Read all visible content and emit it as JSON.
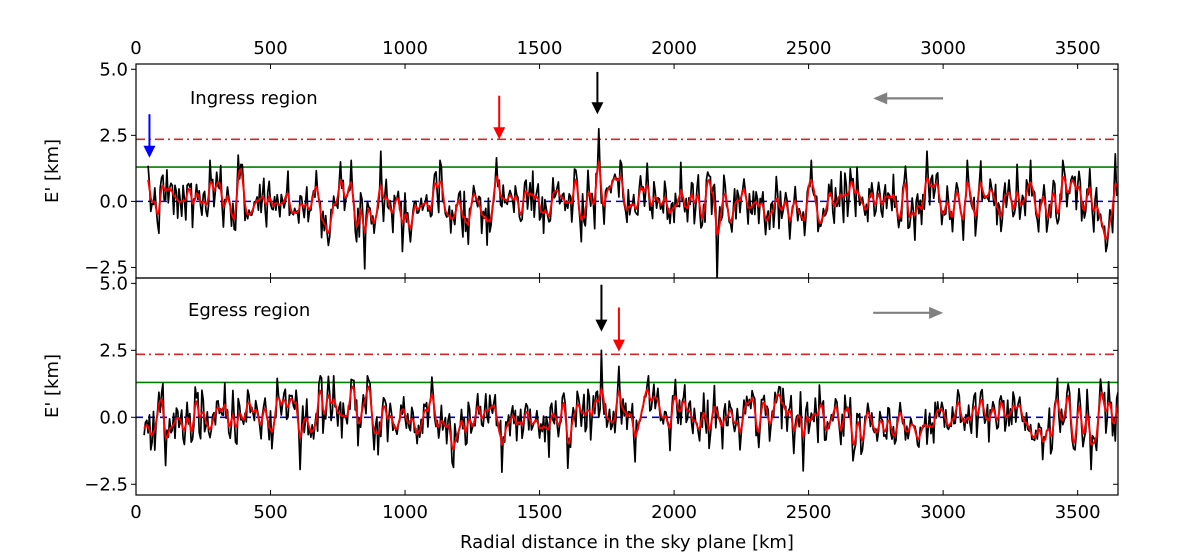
{
  "chart_data": [
    {
      "type": "line",
      "panel": "top",
      "annotation": "Ingress region",
      "ylabel": "E' [km]",
      "xlabel": "",
      "xlim": [
        0,
        3650
      ],
      "ylim": [
        -2.9,
        5.2
      ],
      "xticks": [
        0,
        500,
        1000,
        1500,
        2000,
        2500,
        3000,
        3500
      ],
      "xtick_labels": [
        "0",
        "500",
        "1000",
        "1500",
        "2000",
        "2500",
        "3000",
        "3500"
      ],
      "yticks": [
        -2.5,
        0.0,
        2.5,
        5.0
      ],
      "ytick_labels": [
        "−2.5",
        "0.0",
        "2.5",
        "5.0"
      ],
      "x_start": 45,
      "x_end": 3650,
      "seed": 7,
      "features": [
        {
          "x": 45,
          "y": 1.35
        },
        {
          "x": 380,
          "y": 1.75
        },
        {
          "x": 850,
          "y": -2.55
        },
        {
          "x": 910,
          "y": 1.9
        },
        {
          "x": 1340,
          "y": 1.65
        },
        {
          "x": 1720,
          "y": 2.75
        },
        {
          "x": 2160,
          "y": -3.0
        },
        {
          "x": 2940,
          "y": 1.9
        },
        {
          "x": 3640,
          "y": 1.8
        }
      ],
      "series": [
        {
          "name": "E' (raw)",
          "color": "#000000"
        },
        {
          "name": "E' (smoothed)",
          "color": "#ff0000"
        }
      ],
      "hlines": [
        {
          "name": "3-sigma",
          "y": 2.35,
          "color": "#d62728",
          "style": "dashdot"
        },
        {
          "name": "1-sigma",
          "y": 1.3,
          "color": "#008000",
          "style": "solid"
        },
        {
          "name": "zero",
          "y": 0.0,
          "color": "#0000cc",
          "style": "dashed"
        }
      ],
      "markers": [
        {
          "name": "blue-arrow",
          "x": 50,
          "y_tip": 1.65,
          "y_tail": 3.3,
          "color": "#0000ff"
        },
        {
          "name": "red-arrow",
          "x": 1350,
          "y_tip": 2.35,
          "y_tail": 4.0,
          "color": "#ff0000"
        },
        {
          "name": "black-arrow",
          "x": 1715,
          "y_tip": 3.3,
          "y_tail": 4.9,
          "color": "#000000"
        }
      ],
      "direction_arrow": {
        "from": 3000,
        "to": 2740,
        "y": 3.9,
        "color": "#808080"
      }
    },
    {
      "type": "line",
      "panel": "bottom",
      "annotation": "Egress region",
      "ylabel": "E' [km]",
      "xlabel": "Radial distance in the sky plane [km]",
      "xlim": [
        0,
        3650
      ],
      "ylim": [
        -2.9,
        5.2
      ],
      "xticks": [
        0,
        500,
        1000,
        1500,
        2000,
        2500,
        3000,
        3500
      ],
      "xtick_labels": [
        "0",
        "500",
        "1000",
        "1500",
        "2000",
        "2500",
        "3000",
        "3500"
      ],
      "yticks": [
        -2.5,
        0.0,
        2.5,
        5.0
      ],
      "ytick_labels": [
        "−2.5",
        "0.0",
        "2.5",
        "5.0"
      ],
      "x_start": 30,
      "x_end": 3650,
      "seed": 19,
      "features": [
        {
          "x": 110,
          "y": -1.8
        },
        {
          "x": 610,
          "y": -1.95
        },
        {
          "x": 1100,
          "y": 1.5
        },
        {
          "x": 1360,
          "y": -2.05
        },
        {
          "x": 1730,
          "y": 2.5
        },
        {
          "x": 1795,
          "y": 1.9
        },
        {
          "x": 2480,
          "y": -2.0
        },
        {
          "x": 3550,
          "y": -1.95
        }
      ],
      "series": [
        {
          "name": "E' (raw)",
          "color": "#000000"
        },
        {
          "name": "E' (smoothed)",
          "color": "#ff0000"
        }
      ],
      "hlines": [
        {
          "name": "3-sigma",
          "y": 2.35,
          "color": "#d62728",
          "style": "dashdot"
        },
        {
          "name": "1-sigma",
          "y": 1.3,
          "color": "#008000",
          "style": "solid"
        },
        {
          "name": "zero",
          "y": 0.0,
          "color": "#0000cc",
          "style": "dashed"
        }
      ],
      "markers": [
        {
          "name": "black-arrow",
          "x": 1730,
          "y_tip": 3.2,
          "y_tail": 4.95,
          "color": "#000000"
        },
        {
          "name": "red-arrow",
          "x": 1795,
          "y_tip": 2.45,
          "y_tail": 4.1,
          "color": "#ff0000"
        }
      ],
      "direction_arrow": {
        "from": 2740,
        "to": 3000,
        "y": 3.9,
        "color": "#808080"
      }
    }
  ]
}
